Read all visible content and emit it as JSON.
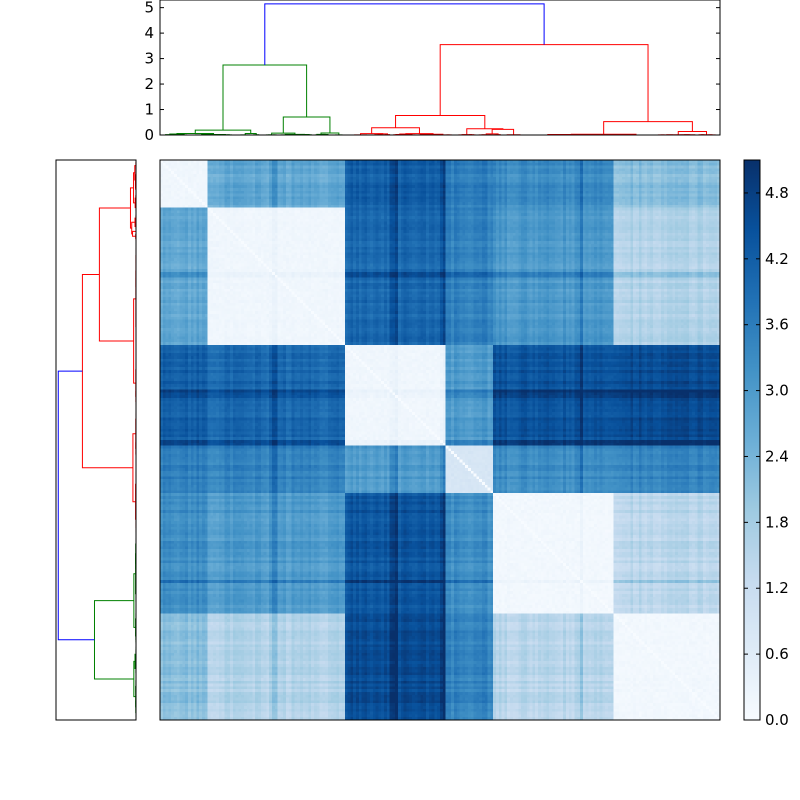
{
  "chart_data": [
    {
      "type": "dendrogram",
      "name_hint": "top column dendrogram",
      "ylim": [
        0,
        5.3
      ],
      "yticks": [
        "0",
        "1",
        "2",
        "3",
        "4",
        "5"
      ],
      "colors": {
        "root": "#0000ff",
        "left_cluster": "#008000",
        "right_cluster": "#ff0000"
      },
      "root_height": 5.15,
      "left_cluster_height": 2.75,
      "right_cluster_height": 3.55
    },
    {
      "type": "dendrogram",
      "name_hint": "left row dendrogram",
      "orientation": "left",
      "root_height": 5.15,
      "colors": {
        "root": "#0000ff",
        "bottom_cluster": "#008000",
        "top_cluster": "#ff0000"
      }
    },
    {
      "type": "heatmap",
      "colormap": "Blues",
      "vmin": 0.0,
      "vmax": 5.1,
      "matrix_size": 200,
      "block_sizes": [
        17,
        49,
        36,
        17,
        43,
        38
      ],
      "block_means": [
        [
          0.15,
          2.7,
          4.2,
          3.6,
          3.3,
          2.2
        ],
        [
          2.7,
          0.15,
          4.0,
          3.5,
          3.0,
          1.6
        ],
        [
          4.2,
          4.0,
          0.15,
          3.0,
          4.4,
          4.6
        ],
        [
          3.6,
          3.5,
          3.0,
          0.8,
          3.3,
          3.5
        ],
        [
          3.3,
          3.0,
          4.4,
          3.3,
          0.1,
          1.5
        ],
        [
          2.2,
          1.6,
          4.6,
          3.5,
          1.5,
          0.1
        ]
      ]
    },
    {
      "type": "colorbar",
      "colormap": "Blues",
      "ticks": [
        "0.0",
        "0.6",
        "1.2",
        "1.8",
        "2.4",
        "3.0",
        "3.6",
        "4.2",
        "4.8"
      ],
      "tick_values": [
        0.0,
        0.6,
        1.2,
        1.8,
        2.4,
        3.0,
        3.6,
        4.2,
        4.8
      ],
      "vmin": 0.0,
      "vmax": 5.1
    }
  ]
}
